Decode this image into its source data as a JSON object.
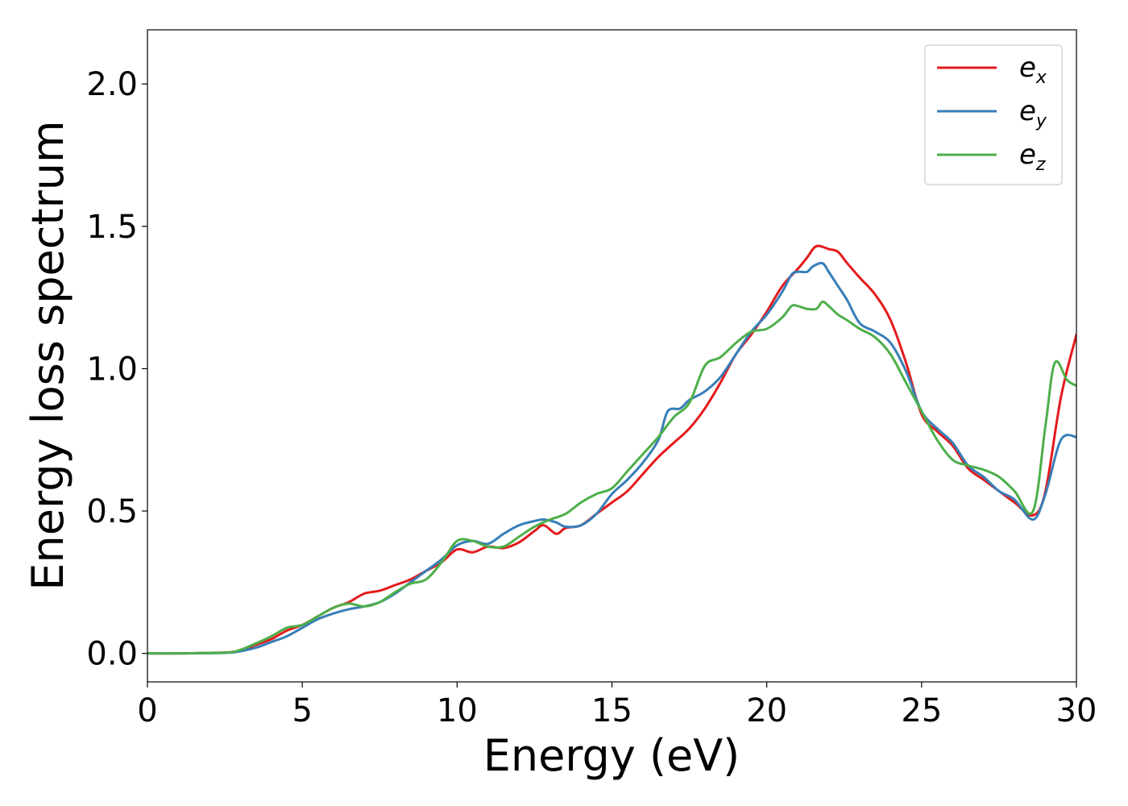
{
  "chart_data": {
    "type": "line",
    "xlabel": "Energy (eV)",
    "ylabel": "Energy loss spectrum",
    "xlim": [
      0,
      30
    ],
    "ylim": [
      -0.1,
      2.19
    ],
    "xticks": [
      0,
      5,
      10,
      15,
      20,
      25,
      30
    ],
    "xtick_labels": [
      "0",
      "5",
      "10",
      "15",
      "20",
      "25",
      "30"
    ],
    "yticks": [
      0.0,
      0.5,
      1.0,
      1.5,
      2.0
    ],
    "ytick_labels": [
      "0.0",
      "0.5",
      "1.0",
      "1.5",
      "2.0"
    ],
    "grid": false,
    "legend_position": "top-right",
    "series": [
      {
        "name": "e_x",
        "legend_base": "e",
        "legend_sub": "x",
        "color": "#e41a1c",
        "x": [
          0,
          1,
          2,
          2.8,
          3.5,
          4,
          4.5,
          5,
          5.5,
          6,
          6.5,
          7,
          7.5,
          8,
          8.5,
          9,
          9.5,
          10,
          10.5,
          11,
          11.5,
          12,
          12.5,
          12.8,
          13.2,
          13.5,
          14,
          14.5,
          15,
          15.5,
          16,
          16.5,
          17,
          17.5,
          18,
          18.5,
          19,
          19.5,
          20,
          20.5,
          21,
          21.3,
          21.6,
          22,
          22.3,
          22.6,
          23,
          23.5,
          24,
          24.5,
          25,
          25.5,
          26,
          26.5,
          27,
          27.5,
          28,
          28.6,
          29,
          29.5,
          30
        ],
        "y": [
          0.0,
          0.0,
          0.002,
          0.006,
          0.03,
          0.05,
          0.08,
          0.1,
          0.13,
          0.16,
          0.18,
          0.21,
          0.22,
          0.24,
          0.26,
          0.29,
          0.32,
          0.365,
          0.355,
          0.375,
          0.37,
          0.39,
          0.43,
          0.45,
          0.42,
          0.44,
          0.45,
          0.49,
          0.53,
          0.57,
          0.63,
          0.69,
          0.74,
          0.79,
          0.86,
          0.95,
          1.05,
          1.12,
          1.2,
          1.29,
          1.35,
          1.39,
          1.43,
          1.42,
          1.41,
          1.37,
          1.32,
          1.26,
          1.17,
          1.02,
          0.84,
          0.78,
          0.73,
          0.65,
          0.61,
          0.57,
          0.53,
          0.485,
          0.57,
          0.9,
          1.12
        ]
      },
      {
        "name": "e_y",
        "legend_base": "e",
        "legend_sub": "y",
        "color": "#377eb8",
        "x": [
          0,
          1,
          2,
          2.8,
          3.5,
          4,
          4.5,
          5,
          5.5,
          6,
          6.5,
          7,
          7.5,
          8,
          8.5,
          9,
          9.5,
          10,
          10.5,
          11,
          11.5,
          12,
          12.5,
          12.8,
          13.2,
          13.5,
          14,
          14.5,
          15,
          15.5,
          16,
          16.5,
          16.8,
          17.2,
          17.5,
          18,
          18.5,
          19,
          19.5,
          20,
          20.5,
          20.8,
          21,
          21.3,
          21.5,
          21.8,
          22,
          22.3,
          22.6,
          23,
          23.5,
          24,
          24.5,
          25,
          25.5,
          26,
          26.5,
          27,
          27.5,
          28,
          28.6,
          29,
          29.5,
          30
        ],
        "y": [
          0.0,
          0.0,
          0.001,
          0.004,
          0.02,
          0.04,
          0.06,
          0.09,
          0.12,
          0.14,
          0.155,
          0.165,
          0.18,
          0.21,
          0.25,
          0.29,
          0.33,
          0.38,
          0.395,
          0.385,
          0.42,
          0.45,
          0.465,
          0.47,
          0.46,
          0.445,
          0.45,
          0.49,
          0.56,
          0.61,
          0.67,
          0.75,
          0.85,
          0.86,
          0.89,
          0.92,
          0.97,
          1.05,
          1.13,
          1.19,
          1.27,
          1.33,
          1.34,
          1.34,
          1.36,
          1.37,
          1.34,
          1.29,
          1.24,
          1.16,
          1.13,
          1.09,
          0.99,
          0.85,
          0.79,
          0.74,
          0.66,
          0.62,
          0.57,
          0.54,
          0.47,
          0.56,
          0.75,
          0.76
        ]
      },
      {
        "name": "e_z",
        "legend_base": "e",
        "legend_sub": "z",
        "color": "#4daf4a",
        "x": [
          0,
          1,
          2,
          2.8,
          3.5,
          4,
          4.5,
          5,
          5.5,
          6,
          6.5,
          7,
          7.5,
          8,
          8.5,
          9,
          9.5,
          10,
          10.5,
          11,
          11.5,
          12,
          12.5,
          13,
          13.5,
          14,
          14.5,
          15,
          15.5,
          16,
          16.5,
          17,
          17.5,
          18,
          18.5,
          19,
          19.5,
          20,
          20.5,
          20.8,
          21,
          21.3,
          21.6,
          21.8,
          22,
          22.3,
          22.6,
          23,
          23.5,
          24,
          24.5,
          25,
          25.5,
          26,
          26.5,
          27,
          27.5,
          28,
          28.6,
          29,
          29.3,
          29.7,
          30
        ],
        "y": [
          0.0,
          0.0,
          0.002,
          0.006,
          0.035,
          0.06,
          0.09,
          0.1,
          0.13,
          0.16,
          0.175,
          0.165,
          0.18,
          0.215,
          0.245,
          0.26,
          0.32,
          0.395,
          0.395,
          0.375,
          0.375,
          0.41,
          0.445,
          0.47,
          0.49,
          0.53,
          0.56,
          0.58,
          0.64,
          0.7,
          0.76,
          0.83,
          0.88,
          1.01,
          1.04,
          1.09,
          1.13,
          1.14,
          1.18,
          1.22,
          1.22,
          1.21,
          1.21,
          1.235,
          1.22,
          1.19,
          1.17,
          1.14,
          1.11,
          1.05,
          0.95,
          0.85,
          0.75,
          0.68,
          0.66,
          0.645,
          0.62,
          0.57,
          0.5,
          0.8,
          1.02,
          0.96,
          0.94
        ]
      }
    ]
  }
}
